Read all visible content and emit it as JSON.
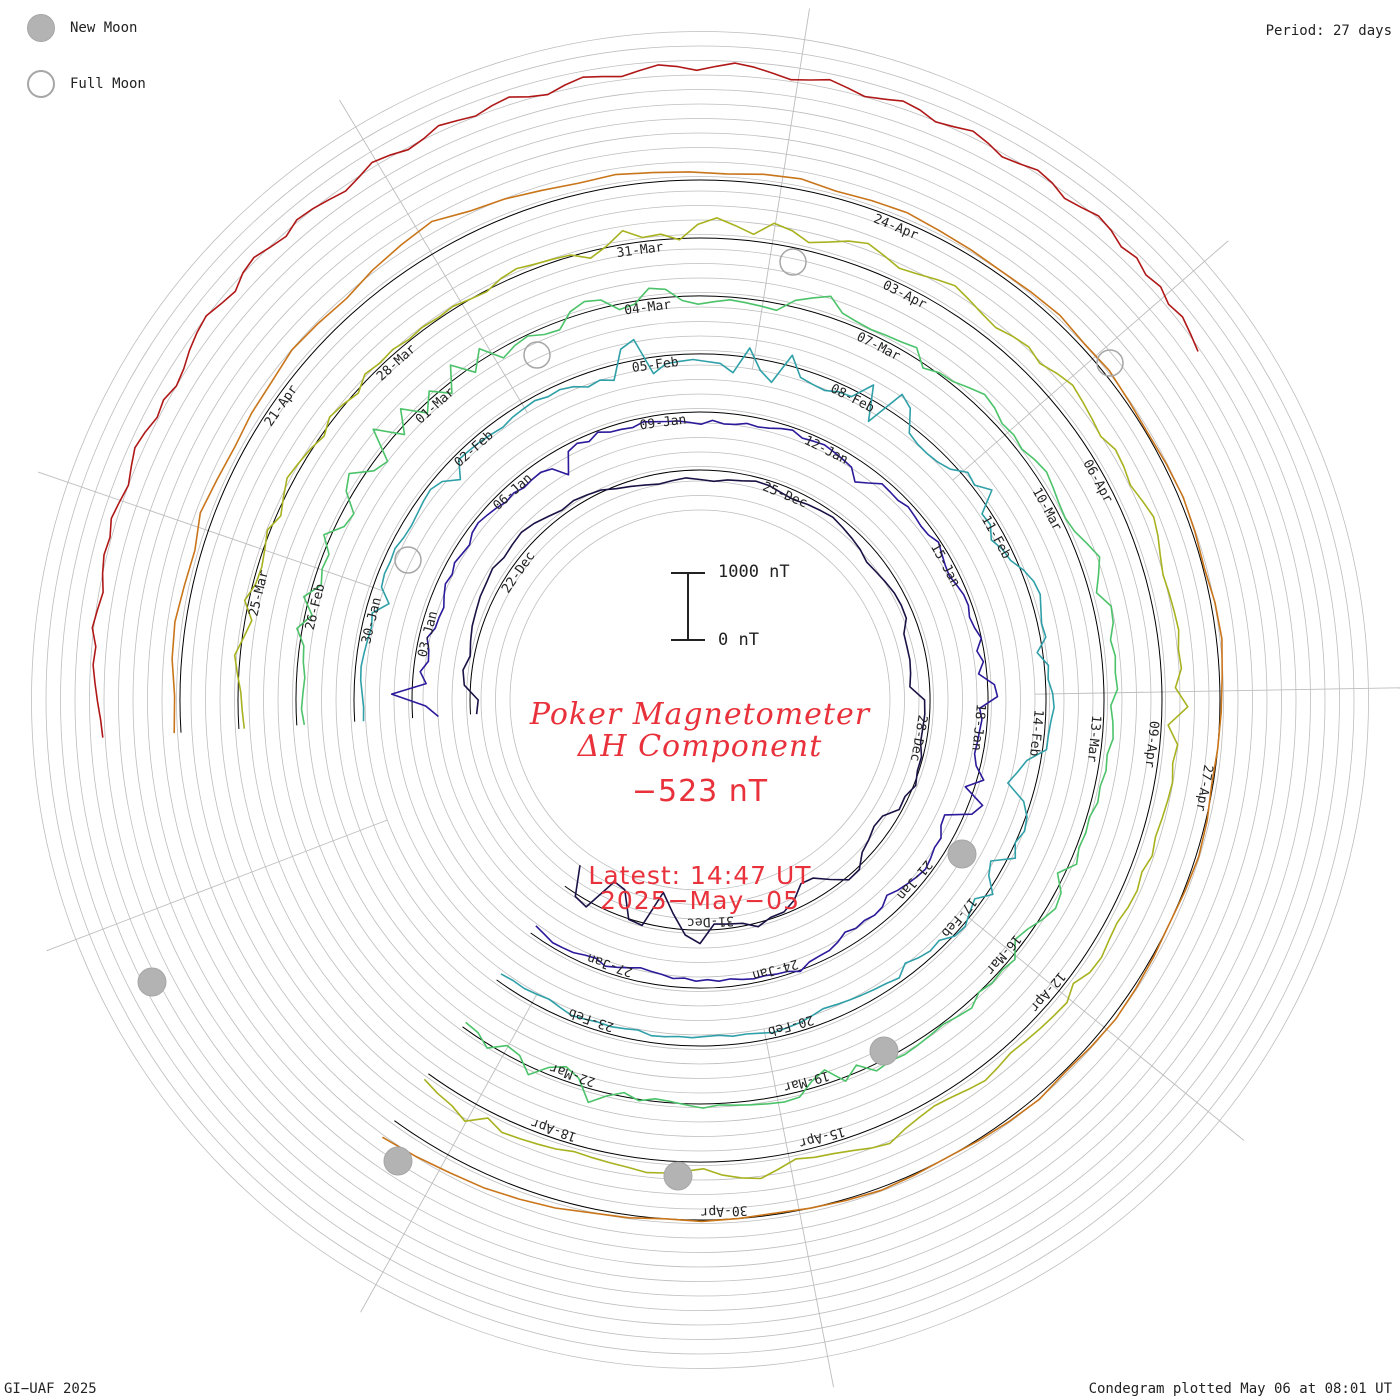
{
  "legend": {
    "new_moon_label": "New Moon",
    "full_moon_label": "Full Moon"
  },
  "period_label": "Period: 27 days",
  "title": {
    "line1": "Poker Magnetometer",
    "line2": "ΔH Component"
  },
  "current_value": "−523 nT",
  "latest": {
    "time_label": "Latest: 14:47 UT",
    "date_label": "2025−May−05"
  },
  "scale_bar": {
    "top_label": "1000 nT",
    "bottom_label": "0 nT",
    "top_value": 1000,
    "bottom_value": 0
  },
  "credit": "GI−UAF 2025",
  "plotted_label": "Condegram plotted May 06 at 08:01 UT",
  "colors": {
    "title_text": "#e8313a",
    "grid": "#bdbdbd",
    "baseline": "#000000",
    "moon_fill": "#b3b3b3",
    "moon_stroke": "#a6a6a6"
  },
  "chart_data": {
    "type": "line",
    "layout": "spiral condegram",
    "period_days": 27,
    "units": "nT",
    "rings": [
      {
        "color": "#1c1145",
        "date_labels": [
          "22-Dec",
          "25-Dec",
          "28-Dec",
          "31-Dec"
        ],
        "values": [
          -90,
          -120,
          90,
          130,
          60,
          100,
          140,
          160,
          190,
          200,
          230,
          180,
          200,
          220,
          180,
          120,
          70,
          90,
          60,
          30,
          -40,
          -80,
          -120,
          -150,
          -130,
          -110,
          -140,
          -160,
          -120,
          -100,
          -60,
          -70,
          -110,
          -130,
          -100,
          -80,
          -60,
          -90,
          -120,
          -150,
          -200,
          -180,
          -150,
          -120,
          -110,
          -120,
          -230,
          -240,
          -240,
          -260,
          -290,
          -80,
          -70,
          -80,
          -80,
          -20,
          -20,
          30,
          -50,
          -40,
          -200,
          -220,
          -160,
          -110,
          40,
          50,
          -120,
          -280,
          -300,
          -130,
          -30,
          -20,
          60,
          -40,
          -60,
          -80,
          200,
          80,
          -220,
          -500,
          40,
          10,
          -380,
          -430,
          90,
          40,
          -380
        ]
      },
      {
        "color": "#2b1a9a",
        "date_labels": [
          "03-Jan",
          "06-Jan",
          "09-Jan",
          "12-Jan",
          "15-Jan",
          "18-Jan",
          "21-Jan",
          "24-Jan",
          "27-Jan"
        ],
        "values": [
          -380,
          -200,
          300,
          -200,
          -100,
          -200,
          -180,
          -120,
          -200,
          -210,
          -230,
          -170,
          -120,
          -150,
          -100,
          -130,
          -150,
          -80,
          -60,
          -90,
          -120,
          -160,
          -140,
          -180,
          -160,
          -150,
          -200,
          -400,
          -100,
          -50,
          -100,
          -20,
          -80,
          -90,
          -110,
          -60,
          -90,
          -110,
          -120,
          -150,
          -180,
          -120,
          -160,
          -150,
          -110,
          -130,
          -110,
          -70,
          -40,
          -100,
          -80,
          -60,
          -90,
          -120,
          -150,
          -300,
          -200,
          -80,
          -90,
          -100,
          -60,
          -80,
          -100,
          -90,
          -30,
          -80,
          -120,
          -140,
          -100,
          -60,
          -50,
          -90,
          -60,
          0,
          -100,
          -30,
          -120,
          100,
          140,
          -120,
          -80,
          -100,
          -110,
          -120,
          -60,
          100,
          -130,
          200,
          100,
          -260,
          -240,
          -150,
          -160,
          -120,
          -90,
          -120,
          -160,
          -200,
          -260,
          -180,
          -160,
          -190,
          -170,
          -210,
          -140,
          -90,
          -80,
          -60,
          20,
          -40,
          -50,
          -70,
          -60,
          -80,
          -110,
          -90,
          -120,
          -100,
          -140,
          -120,
          -160,
          -180,
          -200,
          -160,
          -120,
          -80,
          -140,
          -120,
          -80,
          -70,
          -60,
          -100,
          -130
        ]
      },
      {
        "color": "#2fa0a8",
        "date_labels": [
          "30-Jan",
          "02-Feb",
          "05-Feb",
          "08-Feb",
          "11-Feb",
          "14-Feb",
          "17-Feb",
          "20-Feb",
          "23-Feb"
        ],
        "values": [
          -130,
          -140,
          -120,
          -90,
          -80,
          -100,
          -120,
          -140,
          -100,
          -300,
          -120,
          -90,
          -100,
          -80,
          -120,
          -130,
          -110,
          -80,
          -60,
          -120,
          -300,
          -80,
          -90,
          -100,
          -120,
          -140,
          -100,
          -80,
          -60,
          -100,
          -80,
          -120,
          -200,
          -160,
          -220,
          200,
          300,
          -240,
          -120,
          -100,
          -80,
          -110,
          -130,
          -250,
          140,
          -160,
          -300,
          160,
          -120,
          -160,
          -180,
          -120,
          -100,
          200,
          -300,
          300,
          200,
          -100,
          -150,
          -160,
          -140,
          -80,
          80,
          40,
          200,
          -120,
          -100,
          -200,
          -120,
          -80,
          40,
          120,
          150,
          100,
          60,
          80,
          -80,
          60,
          40,
          100,
          120,
          80,
          60,
          60,
          -200,
          -300,
          -400,
          -100,
          20,
          60,
          0,
          100,
          -200,
          -120,
          80,
          -100,
          -40,
          40,
          20,
          -100,
          -80,
          -120,
          -180,
          -60,
          -100,
          -120,
          -140,
          -160,
          -180,
          -200,
          -160,
          -120,
          -100,
          -80,
          -110,
          -130,
          -120,
          -150,
          -140,
          -120,
          -130,
          -110,
          -100,
          -150,
          -130,
          -110,
          -120,
          -100,
          -80,
          -120,
          -160,
          -140,
          -120,
          -130,
          -110
        ]
      },
      {
        "color": "#4cc36a",
        "date_labels": [
          "26-Feb",
          "01-Mar",
          "04-Mar",
          "07-Mar",
          "10-Mar",
          "13-Mar",
          "16-Mar",
          "19-Mar",
          "22-Mar"
        ],
        "values": [
          -110,
          -80,
          -100,
          -120,
          -80,
          -60,
          80,
          -100,
          80,
          -120,
          -60,
          -80,
          100,
          -120,
          -160,
          100,
          200,
          -80,
          -160,
          300,
          -100,
          200,
          -120,
          100,
          -140,
          200,
          -100,
          160,
          -140,
          -60,
          -20,
          -100,
          -120,
          80,
          160,
          120,
          -80,
          -40,
          160,
          120,
          -60,
          -120,
          -80,
          -40,
          -60,
          -80,
          -100,
          100,
          200,
          300,
          120,
          80,
          60,
          80,
          100,
          140,
          -60,
          20,
          40,
          120,
          200,
          160,
          80,
          100,
          60,
          120,
          160,
          120,
          80,
          60,
          100,
          200,
          300,
          200,
          100,
          260,
          240,
          160,
          200,
          180,
          200,
          100,
          140,
          160,
          100,
          120,
          80,
          100,
          40,
          60,
          40,
          100,
          -100,
          80,
          120,
          40,
          -60,
          -120,
          60,
          20,
          40,
          0,
          100,
          60,
          20,
          40,
          60,
          80,
          60,
          100,
          -100,
          60,
          -200,
          -100,
          80,
          100,
          80,
          60,
          40,
          20,
          60,
          20,
          -20,
          -40,
          20,
          -60,
          40,
          200,
          -100,
          -200,
          -100,
          120,
          -80,
          -120,
          60,
          -60,
          -80
        ]
      },
      {
        "color": "#a8b21f",
        "date_labels": [
          "25-Mar",
          "28-Mar",
          "31-Mar",
          "03-Apr",
          "06-Apr",
          "09-Apr",
          "12-Apr",
          "15-Apr",
          "18-Apr"
        ],
        "values": [
          -80,
          -60,
          -40,
          20,
          80,
          -20,
          -100,
          60,
          -40,
          -60,
          -20,
          40,
          -60,
          20,
          100,
          60,
          20,
          -40,
          60,
          20,
          -40,
          80,
          40,
          60,
          20,
          40,
          20,
          40,
          0,
          -20,
          60,
          100,
          60,
          40,
          20,
          -100,
          20,
          200,
          60,
          80,
          -20,
          200,
          300,
          200,
          100,
          300,
          240,
          120,
          200,
          300,
          360,
          280,
          200,
          240,
          300,
          360,
          300,
          240,
          200,
          260,
          300,
          240,
          320,
          380,
          340,
          300,
          260,
          340,
          320,
          280,
          340,
          400,
          360,
          300,
          260,
          280,
          300,
          320,
          280,
          300,
          200,
          380,
          100,
          260,
          220,
          260,
          240,
          220,
          200,
          240,
          180,
          220,
          200,
          160,
          180,
          220,
          200,
          100,
          200,
          180,
          160,
          140,
          120,
          160,
          200,
          160,
          120,
          100,
          140,
          200,
          300,
          260,
          200,
          160,
          140,
          100,
          200,
          300,
          260,
          200,
          100,
          140,
          180,
          200,
          160,
          140,
          120,
          100,
          140,
          160,
          180,
          200,
          100,
          300,
          200,
          160,
          100
        ]
      },
      {
        "color": "#c9751a",
        "date_labels": [
          "21-Apr",
          "24-Apr",
          "27-Apr",
          "30-Apr"
        ],
        "values": [
          100,
          80,
          140,
          160,
          120,
          100,
          200,
          160,
          140,
          180,
          200,
          260,
          240,
          220,
          300,
          360,
          420,
          300,
          260,
          200,
          160,
          180,
          140,
          120,
          100,
          140,
          160,
          100,
          120,
          140,
          100,
          80,
          60,
          80,
          100,
          60,
          80,
          40,
          20,
          40,
          60,
          40,
          20,
          60,
          80,
          40,
          20,
          0,
          -20,
          20,
          40,
          20,
          0,
          20,
          40,
          60,
          40,
          20,
          60,
          40,
          20,
          0,
          20,
          40,
          20,
          0,
          -20,
          0,
          20,
          0,
          40,
          60,
          120,
          160,
          200,
          220,
          260,
          300
        ]
      },
      {
        "color": "#b01818",
        "date_labels": [],
        "values": [
          300,
          320,
          360,
          400,
          440,
          420,
          500,
          460,
          420,
          480,
          520,
          500,
          560,
          520,
          480,
          540,
          600,
          560,
          500,
          540,
          480,
          520,
          600,
          660,
          700,
          640,
          600,
          700,
          740,
          680,
          640,
          720,
          700,
          660,
          620,
          680,
          760,
          720,
          660,
          700,
          780,
          740,
          700,
          760,
          800,
          720,
          680,
          760,
          820,
          780,
          740,
          800,
          860,
          820,
          760,
          820,
          880,
          840,
          780,
          720,
          760,
          820,
          760,
          700,
          740,
          800,
          760,
          680,
          720,
          780,
          720,
          640,
          680,
          740,
          700,
          620,
          660,
          720,
          680,
          600,
          640,
          560,
          600,
          520,
          560,
          500,
          440
        ]
      }
    ]
  }
}
